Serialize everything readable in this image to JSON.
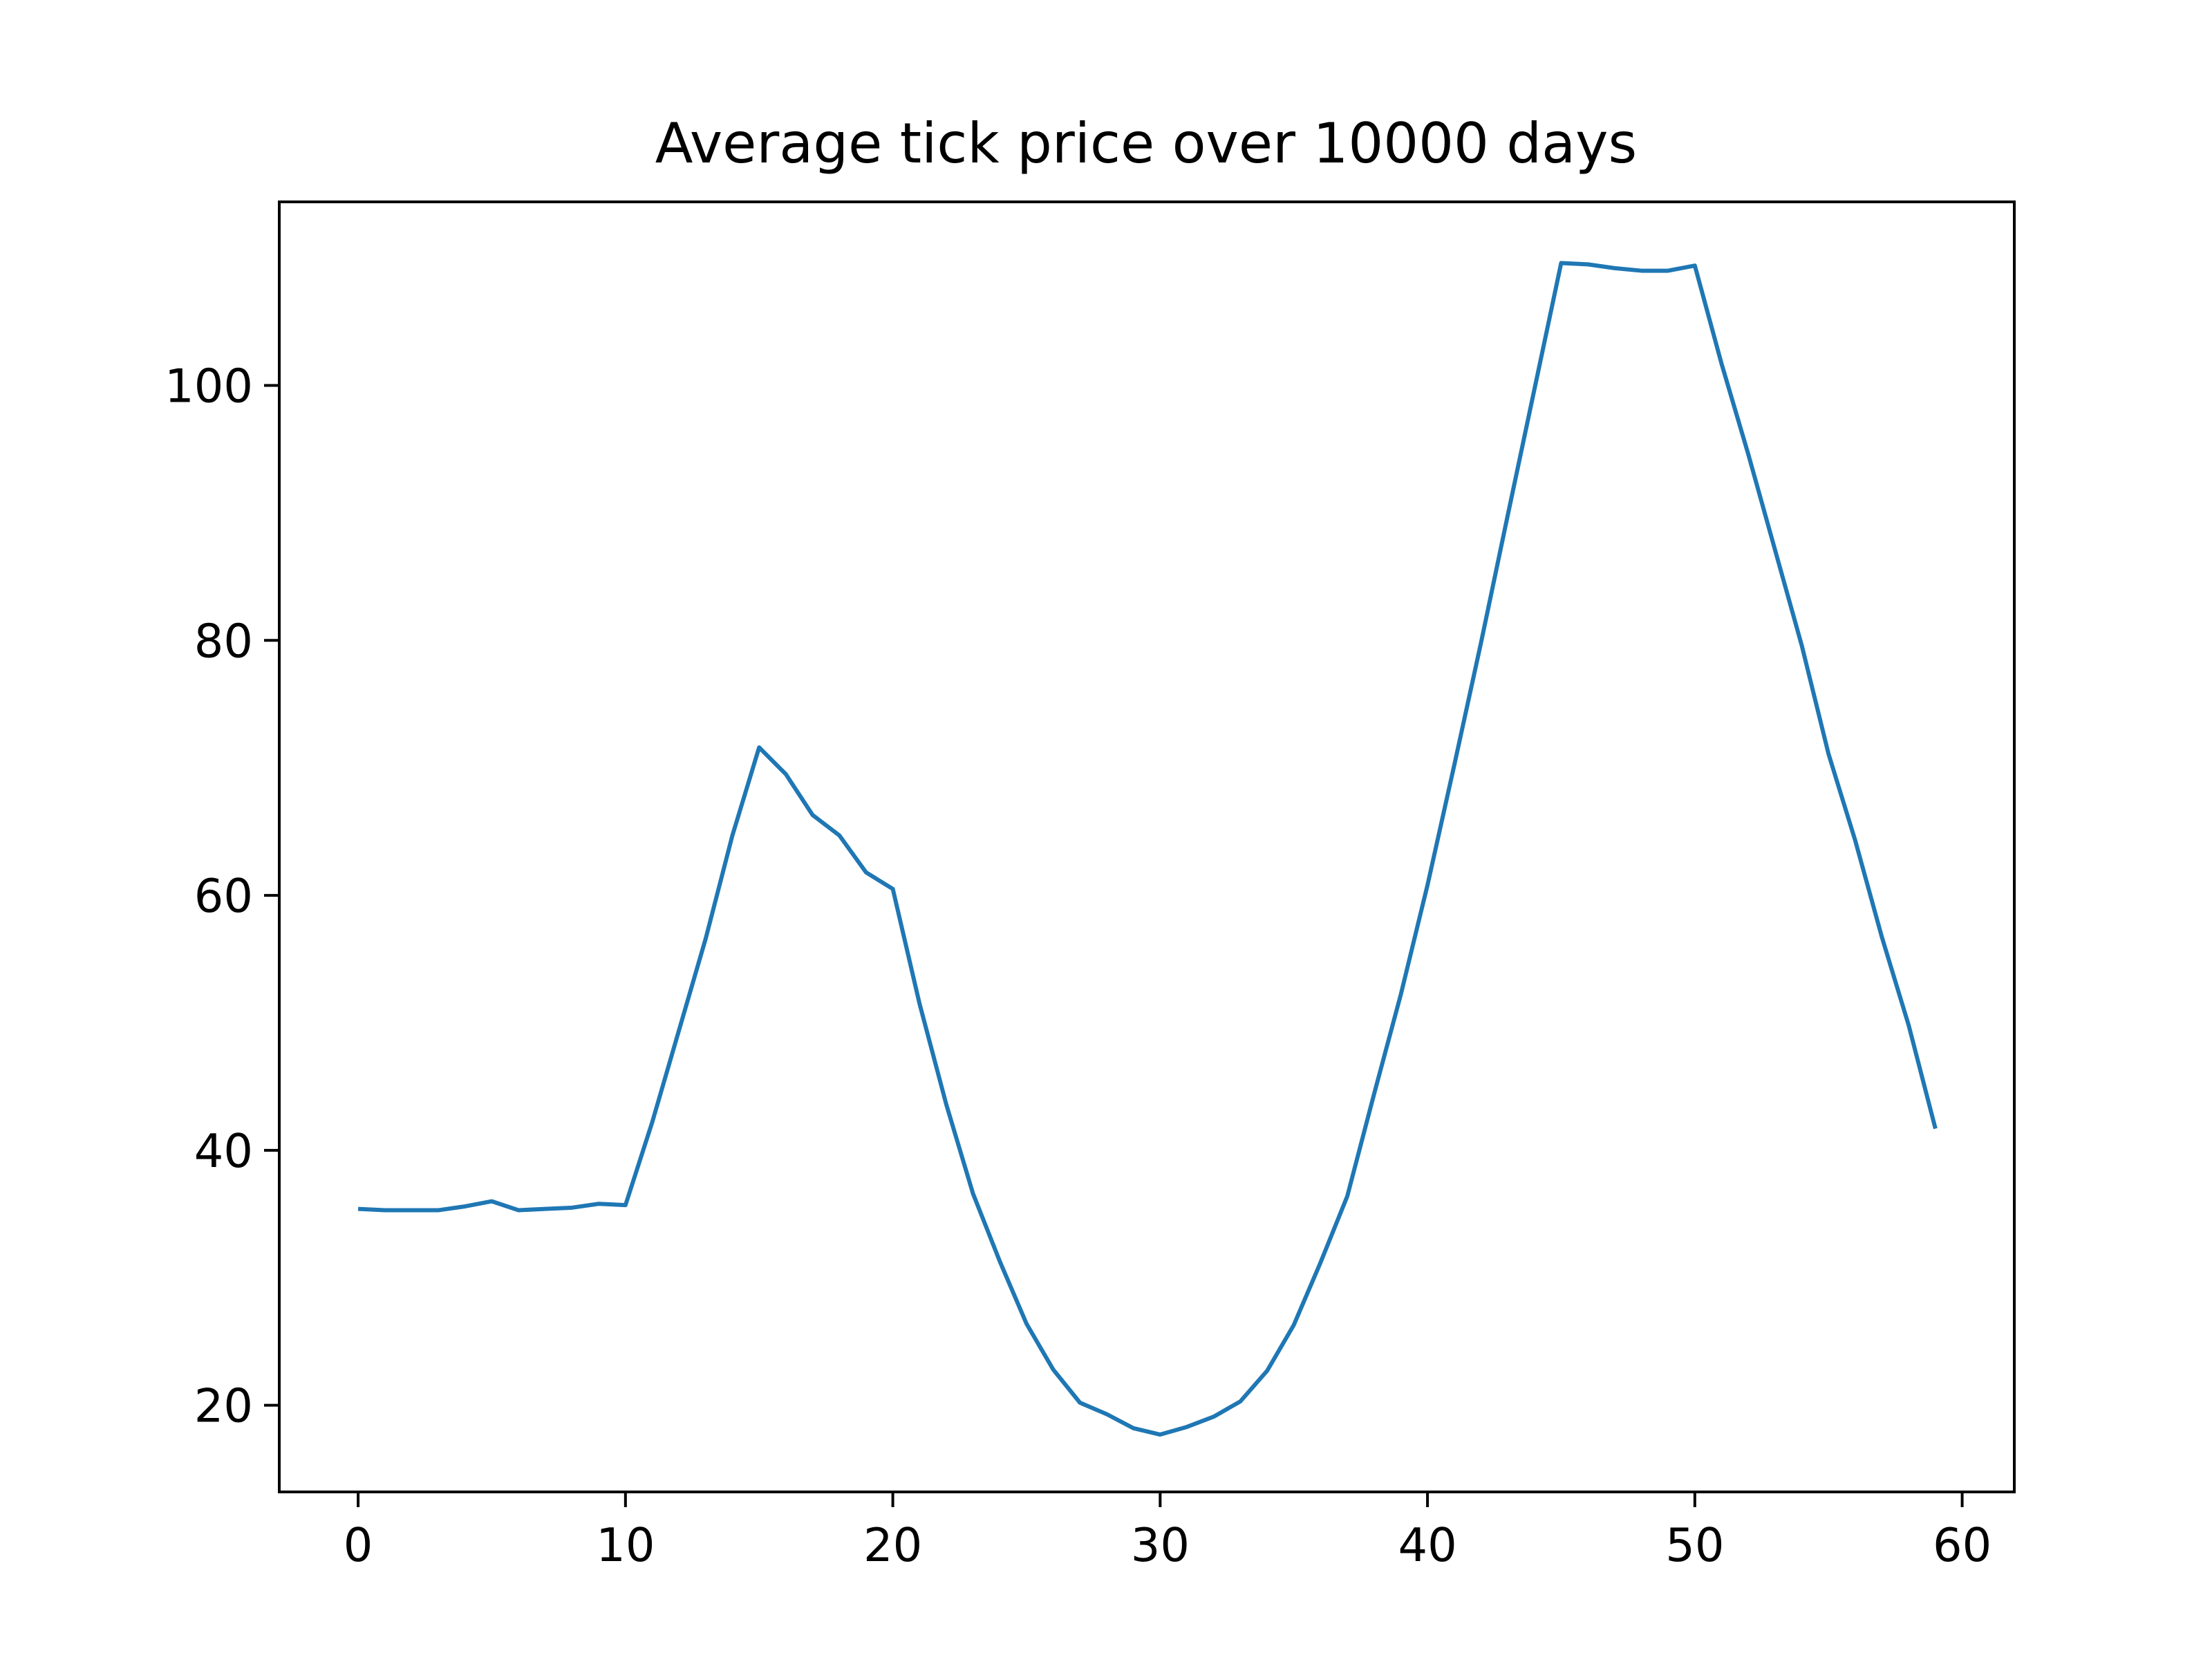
{
  "chart_data": {
    "type": "line",
    "title": "Average tick price over 10000 days",
    "xlabel": "",
    "ylabel": "",
    "xlim": [
      -2.95,
      61.95
    ],
    "ylim": [
      13.2,
      114.4
    ],
    "xticks": [
      0,
      10,
      20,
      30,
      40,
      50,
      60
    ],
    "yticks": [
      20,
      40,
      60,
      80,
      100
    ],
    "grid": false,
    "legend": "none",
    "line_color": "#1f77b4",
    "x": [
      0,
      1,
      2,
      3,
      4,
      5,
      6,
      7,
      8,
      9,
      10,
      11,
      12,
      13,
      14,
      15,
      16,
      17,
      18,
      19,
      20,
      21,
      22,
      23,
      24,
      25,
      26,
      27,
      28,
      29,
      30,
      31,
      32,
      33,
      34,
      35,
      36,
      37,
      38,
      39,
      40,
      41,
      42,
      43,
      44,
      45,
      46,
      47,
      48,
      49,
      50,
      51,
      52,
      53,
      54,
      55,
      56,
      57,
      58,
      59
    ],
    "y": [
      35.4,
      35.3,
      35.3,
      35.3,
      35.6,
      36.0,
      35.3,
      35.4,
      35.5,
      35.8,
      35.7,
      42.2,
      49.4,
      56.6,
      64.7,
      71.6,
      69.5,
      66.3,
      64.7,
      61.8,
      60.5,
      51.5,
      43.6,
      36.6,
      31.3,
      26.4,
      22.8,
      20.2,
      19.3,
      18.2,
      17.7,
      18.3,
      19.1,
      20.3,
      22.7,
      26.3,
      31.2,
      36.4,
      44.4,
      52.2,
      60.8,
      70.2,
      79.8,
      89.8,
      99.7,
      109.6,
      109.5,
      109.2,
      109.0,
      109.0,
      109.4,
      101.7,
      94.6,
      87.1,
      79.6,
      71.1,
      64.3,
      56.7,
      49.8,
      41.7
    ]
  }
}
